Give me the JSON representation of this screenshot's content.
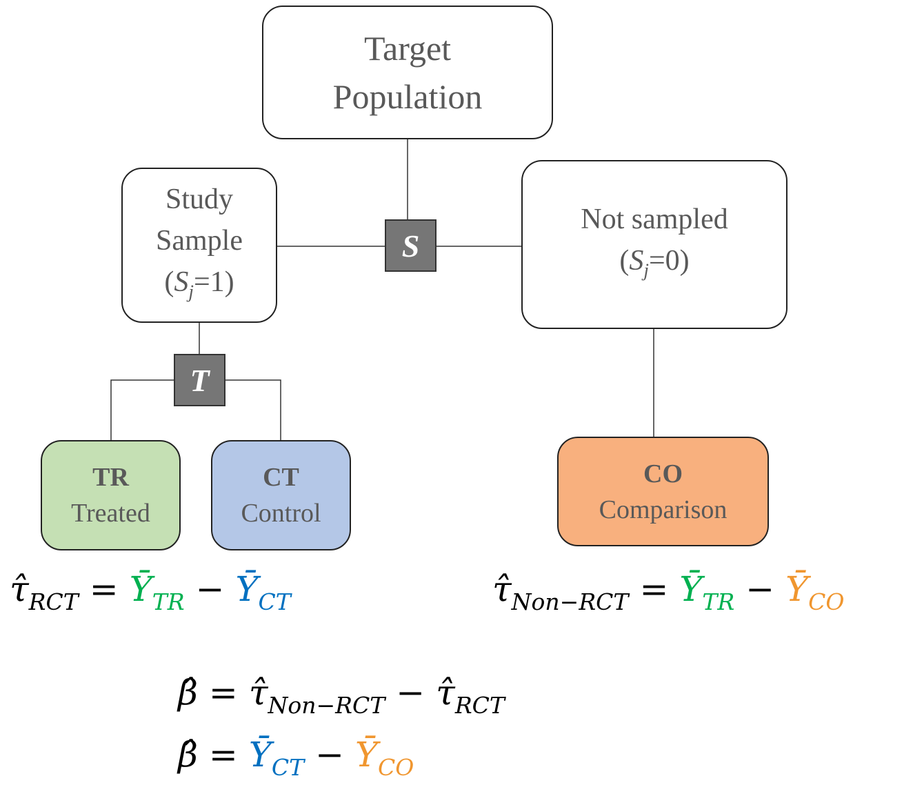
{
  "nodes": {
    "target": {
      "lines": [
        "Target",
        "Population"
      ]
    },
    "study": {
      "lines": [
        "Study",
        "Sample"
      ],
      "cond": {
        "pre": "(",
        "sym": "S",
        "sub": "j",
        "post": "=1)"
      }
    },
    "not_sampled": {
      "lines": [
        "Not sampled"
      ],
      "cond": {
        "pre": "(",
        "sym": "S",
        "sub": "j",
        "post": "=0)"
      }
    },
    "s_node": {
      "label": "S"
    },
    "t_node": {
      "label": "T"
    },
    "tr": {
      "code": "TR",
      "label": "Treated"
    },
    "ct": {
      "code": "CT",
      "label": "Control"
    },
    "co": {
      "code": "CO",
      "label": "Comparison"
    }
  },
  "equations": [
    {
      "terms": [
        {
          "text": "τ̂",
          "sub": "RCT"
        },
        {
          "text": "="
        },
        {
          "text": "Ȳ",
          "sub": "TR",
          "color": "#00b050"
        },
        {
          "text": "−"
        },
        {
          "text": "Ȳ",
          "sub": "CT",
          "color": "#0070c0"
        }
      ]
    },
    {
      "terms": [
        {
          "text": "τ̂",
          "sub": "Non−RCT"
        },
        {
          "text": "="
        },
        {
          "text": "Ȳ",
          "sub": "TR",
          "color": "#00b050"
        },
        {
          "text": "−"
        },
        {
          "text": "Ȳ",
          "sub": "CO",
          "color": "#f0962f"
        }
      ]
    },
    {
      "terms": [
        {
          "text": "β̂"
        },
        {
          "text": "="
        },
        {
          "text": "τ̂",
          "sub": "Non−RCT"
        },
        {
          "text": "−"
        },
        {
          "text": "τ̂",
          "sub": "RCT"
        }
      ]
    },
    {
      "terms": [
        {
          "text": "β̂"
        },
        {
          "text": "="
        },
        {
          "text": "Ȳ",
          "sub": "CT",
          "color": "#0070c0"
        },
        {
          "text": "−"
        },
        {
          "text": "Ȳ",
          "sub": "CO",
          "color": "#f0962f"
        }
      ]
    }
  ]
}
